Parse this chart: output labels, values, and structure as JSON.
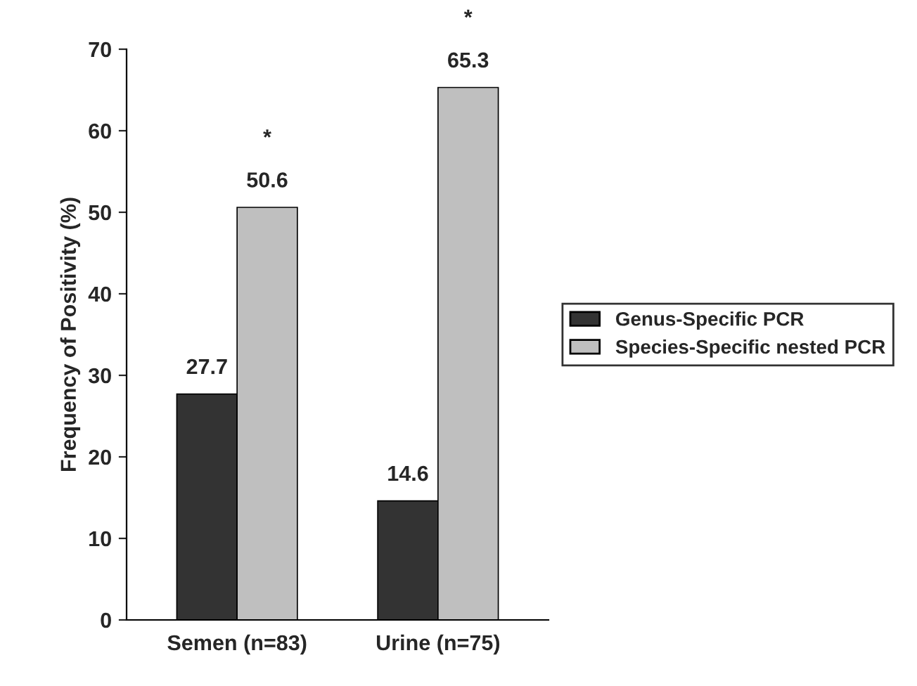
{
  "chart_data": {
    "type": "bar",
    "ylabel": "Frequency of Positivity (%)",
    "categories": [
      "Semen (n=83)",
      "Urine (n=75)"
    ],
    "series": [
      {
        "name": "Genus-Specific PCR",
        "color": "#333333",
        "values": [
          27.7,
          14.6
        ]
      },
      {
        "name": "Species-Specific nested PCR",
        "color": "#bfbfbf",
        "values": [
          50.6,
          65.3
        ]
      }
    ],
    "data_labels": true,
    "annotations": [
      "*",
      "*"
    ],
    "ylim": [
      0,
      70
    ],
    "yticks": [
      0,
      10,
      20,
      30,
      40,
      50,
      60,
      70
    ],
    "grid": false,
    "legend": "right"
  }
}
